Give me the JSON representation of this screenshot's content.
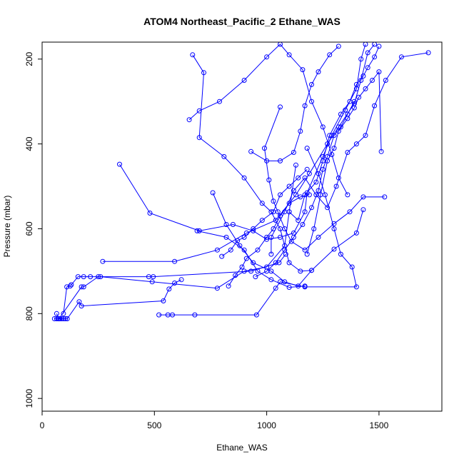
{
  "chart_data": {
    "type": "line",
    "title": "ATOM4 Northeast_Pacific_2 Ethane_WAS",
    "xlabel": "Ethane_WAS",
    "ylabel": "Pressure (mbar)",
    "xlim": [
      0,
      1780
    ],
    "ylim": [
      1030,
      160
    ],
    "y_reversed": true,
    "xticks": [
      0,
      500,
      1000,
      1500
    ],
    "yticks": [
      200,
      400,
      600,
      800,
      1000
    ],
    "grid": false,
    "color": "#0000FF",
    "marker": "open-circle",
    "series": [
      {
        "values": [
          [
            55,
            812
          ],
          [
            65,
            812
          ],
          [
            72,
            812
          ],
          [
            80,
            812
          ],
          [
            88,
            812
          ],
          [
            96,
            812
          ],
          [
            104,
            812
          ],
          [
            112,
            812
          ],
          [
            165,
            772
          ],
          [
            175,
            782
          ],
          [
            540,
            770
          ],
          [
            565,
            742
          ],
          [
            590,
            728
          ],
          [
            620,
            720
          ]
        ]
      },
      {
        "values": [
          [
            65,
            800
          ],
          [
            75,
            812
          ],
          [
            175,
            737
          ],
          [
            185,
            737
          ],
          [
            250,
            713
          ],
          [
            475,
            713
          ],
          [
            495,
            713
          ],
          [
            930,
            700
          ],
          [
            1055,
            680
          ],
          [
            1085,
            660
          ]
        ]
      },
      {
        "values": [
          [
            95,
            800
          ],
          [
            110,
            737
          ],
          [
            125,
            735
          ],
          [
            130,
            732
          ],
          [
            160,
            713
          ],
          [
            185,
            713
          ],
          [
            215,
            713
          ],
          [
            260,
            713
          ],
          [
            490,
            725
          ],
          [
            780,
            740
          ],
          [
            900,
            700
          ],
          [
            1000,
            690
          ],
          [
            1080,
            640
          ],
          [
            1100,
            560
          ],
          [
            1130,
            450
          ]
        ]
      },
      {
        "values": [
          [
            520,
            803
          ],
          [
            560,
            803
          ],
          [
            580,
            803
          ],
          [
            680,
            803
          ],
          [
            955,
            803
          ],
          [
            1040,
            740
          ],
          [
            1060,
            725
          ],
          [
            1170,
            737
          ],
          [
            1400,
            737
          ],
          [
            1380,
            690
          ],
          [
            1330,
            660
          ],
          [
            1300,
            600
          ],
          [
            1260,
            520
          ],
          [
            1230,
            470
          ],
          [
            1180,
            410
          ]
        ]
      },
      {
        "values": [
          [
            270,
            677
          ],
          [
            590,
            677
          ],
          [
            780,
            650
          ],
          [
            910,
            610
          ],
          [
            1040,
            580
          ],
          [
            1130,
            520
          ],
          [
            1190,
            470
          ],
          [
            1270,
            400
          ],
          [
            1320,
            360
          ],
          [
            1390,
            305
          ],
          [
            1420,
            250
          ],
          [
            1450,
            185
          ],
          [
            1480,
            165
          ]
        ]
      },
      {
        "values": [
          [
            345,
            448
          ],
          [
            480,
            563
          ],
          [
            700,
            605
          ],
          [
            850,
            590
          ],
          [
            940,
            605
          ],
          [
            1000,
            625
          ],
          [
            1060,
            620
          ],
          [
            1120,
            610
          ],
          [
            1170,
            560
          ],
          [
            1180,
            515
          ],
          [
            1250,
            430
          ],
          [
            1290,
            380
          ],
          [
            1350,
            320
          ],
          [
            1400,
            270
          ],
          [
            1420,
            200
          ],
          [
            1440,
            165
          ]
        ]
      },
      {
        "values": [
          [
            655,
            343
          ],
          [
            700,
            322
          ],
          [
            790,
            300
          ],
          [
            900,
            250
          ],
          [
            1000,
            195
          ],
          [
            1060,
            165
          ],
          [
            1100,
            190
          ],
          [
            1160,
            225
          ],
          [
            1200,
            300
          ],
          [
            1250,
            360
          ],
          [
            1290,
            425
          ],
          [
            1320,
            480
          ],
          [
            1360,
            520
          ]
        ]
      },
      {
        "values": [
          [
            670,
            190
          ],
          [
            720,
            232
          ],
          [
            700,
            385
          ],
          [
            810,
            430
          ],
          [
            900,
            480
          ],
          [
            980,
            540
          ],
          [
            1020,
            560
          ],
          [
            1060,
            600
          ],
          [
            1100,
            680
          ],
          [
            1150,
            700
          ],
          [
            1200,
            698
          ]
        ]
      },
      {
        "values": [
          [
            760,
            515
          ],
          [
            820,
            590
          ],
          [
            880,
            640
          ],
          [
            940,
            680
          ],
          [
            1020,
            700
          ],
          [
            1080,
            725
          ],
          [
            1140,
            735
          ],
          [
            1200,
            698
          ],
          [
            1300,
            648
          ],
          [
            1400,
            610
          ],
          [
            1430,
            555
          ]
        ]
      },
      {
        "values": [
          [
            1060,
            313
          ],
          [
            990,
            410
          ],
          [
            1010,
            485
          ],
          [
            1030,
            535
          ],
          [
            1050,
            560
          ],
          [
            1080,
            600
          ],
          [
            1110,
            630
          ],
          [
            1170,
            650
          ],
          [
            1230,
            620
          ],
          [
            1300,
            588
          ],
          [
            1370,
            560
          ],
          [
            1430,
            525
          ],
          [
            1525,
            525
          ]
        ]
      },
      {
        "values": [
          [
            930,
            418
          ],
          [
            1000,
            440
          ],
          [
            1060,
            440
          ],
          [
            1120,
            420
          ],
          [
            1150,
            370
          ],
          [
            1170,
            310
          ],
          [
            1200,
            260
          ],
          [
            1230,
            230
          ],
          [
            1280,
            190
          ],
          [
            1320,
            170
          ]
        ]
      },
      {
        "values": [
          [
            690,
            605
          ],
          [
            820,
            620
          ],
          [
            900,
            650
          ],
          [
            960,
            700
          ],
          [
            1020,
            720
          ],
          [
            1100,
            738
          ],
          [
            1170,
            735
          ]
        ]
      },
      {
        "values": [
          [
            830,
            735
          ],
          [
            860,
            710
          ],
          [
            890,
            690
          ],
          [
            910,
            670
          ],
          [
            960,
            650
          ],
          [
            1000,
            620
          ],
          [
            1030,
            600
          ],
          [
            1060,
            570
          ],
          [
            1100,
            540
          ],
          [
            1150,
            525
          ],
          [
            1190,
            520
          ]
        ]
      },
      {
        "values": [
          [
            800,
            665
          ],
          [
            840,
            650
          ],
          [
            870,
            628
          ],
          [
            900,
            620
          ],
          [
            940,
            600
          ],
          [
            980,
            580
          ],
          [
            1030,
            560
          ],
          [
            1060,
            520
          ],
          [
            1100,
            500
          ],
          [
            1140,
            480
          ],
          [
            1180,
            460
          ]
        ]
      },
      {
        "values": [
          [
            1020,
            660
          ],
          [
            1020,
            620
          ],
          [
            1080,
            560
          ],
          [
            1120,
            510
          ],
          [
            1170,
            480
          ],
          [
            1220,
            520
          ],
          [
            1270,
            550
          ],
          [
            1310,
            500
          ],
          [
            1360,
            420
          ],
          [
            1400,
            400
          ],
          [
            1440,
            380
          ],
          [
            1480,
            310
          ],
          [
            1530,
            250
          ],
          [
            1600,
            195
          ],
          [
            1720,
            185
          ]
        ]
      },
      {
        "values": [
          [
            1100,
            560
          ],
          [
            1140,
            580
          ],
          [
            1170,
            520
          ],
          [
            1220,
            490
          ],
          [
            1250,
            440
          ],
          [
            1280,
            380
          ],
          [
            1330,
            330
          ],
          [
            1370,
            300
          ],
          [
            1400,
            260
          ],
          [
            1430,
            240
          ],
          [
            1450,
            220
          ],
          [
            1480,
            195
          ],
          [
            1500,
            170
          ]
        ]
      },
      {
        "values": [
          [
            1180,
            660
          ],
          [
            1210,
            600
          ],
          [
            1240,
            520
          ],
          [
            1270,
            440
          ],
          [
            1300,
            410
          ],
          [
            1320,
            370
          ],
          [
            1360,
            340
          ],
          [
            1390,
            315
          ],
          [
            1410,
            290
          ],
          [
            1440,
            270
          ],
          [
            1470,
            250
          ],
          [
            1500,
            230
          ],
          [
            1510,
            418
          ]
        ]
      },
      {
        "values": [
          [
            950,
            713
          ],
          [
            1000,
            700
          ],
          [
            1040,
            680
          ],
          [
            1080,
            650
          ],
          [
            1120,
            620
          ],
          [
            1160,
            590
          ],
          [
            1200,
            550
          ],
          [
            1230,
            510
          ],
          [
            1250,
            460
          ],
          [
            1270,
            430
          ],
          [
            1300,
            380
          ],
          [
            1330,
            360
          ],
          [
            1360,
            330
          ],
          [
            1390,
            300
          ]
        ]
      }
    ]
  }
}
